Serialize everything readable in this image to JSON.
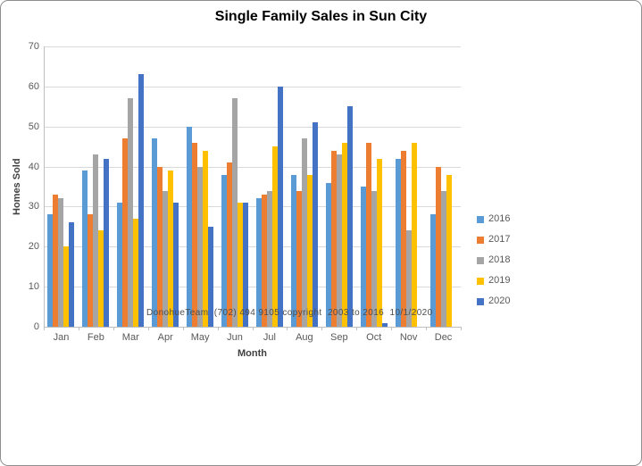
{
  "chart_data": {
    "type": "bar",
    "title": "Single Family Sales in Sun City",
    "xlabel": "Month",
    "ylabel": "Homes Sold",
    "ylim": [
      0,
      70
    ],
    "ytick_step": 10,
    "grid": true,
    "legend_position": "right",
    "categories": [
      "Jan",
      "Feb",
      "Mar",
      "Apr",
      "May",
      "Jun",
      "Jul",
      "Aug",
      "Sep",
      "Oct",
      "Nov",
      "Dec"
    ],
    "series": [
      {
        "name": "2016",
        "color": "#5B9BD5",
        "values": [
          28,
          39,
          31,
          47,
          50,
          38,
          32,
          38,
          36,
          35,
          42,
          28
        ]
      },
      {
        "name": "2017",
        "color": "#ED7D31",
        "values": [
          33,
          28,
          47,
          40,
          46,
          41,
          33,
          34,
          44,
          46,
          44,
          40
        ]
      },
      {
        "name": "2018",
        "color": "#A5A5A5",
        "values": [
          32,
          43,
          57,
          34,
          40,
          57,
          34,
          47,
          43,
          34,
          24,
          34
        ]
      },
      {
        "name": "2019",
        "color": "#FFC000",
        "values": [
          20,
          24,
          27,
          39,
          44,
          31,
          45,
          38,
          46,
          42,
          46,
          38
        ]
      },
      {
        "name": "2020",
        "color": "#4472C4",
        "values": [
          26,
          42,
          63,
          31,
          25,
          31,
          60,
          51,
          55,
          1,
          0,
          0
        ]
      }
    ],
    "watermark": "DonohueTeam  (702) 494 9105 copyright  2003 to 2016  10/1/2020"
  }
}
